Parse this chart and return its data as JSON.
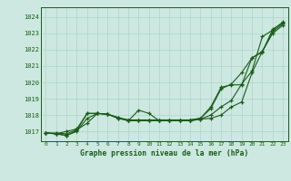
{
  "xlabel": "Graphe pression niveau de la mer (hPa)",
  "ylim": [
    1016.4,
    1024.6
  ],
  "xlim": [
    -0.5,
    23.5
  ],
  "yticks": [
    1017,
    1018,
    1019,
    1020,
    1021,
    1022,
    1023,
    1024
  ],
  "xticks": [
    0,
    1,
    2,
    3,
    4,
    5,
    6,
    7,
    8,
    9,
    10,
    11,
    12,
    13,
    14,
    15,
    16,
    17,
    18,
    19,
    20,
    21,
    22,
    23
  ],
  "bg_color": "#cce8e0",
  "grid_color": "#b0d4c8",
  "line_color": "#1a5c1a",
  "line1": [
    1016.9,
    1016.9,
    1016.85,
    1017.1,
    1017.5,
    1018.1,
    1018.05,
    1017.85,
    1017.65,
    1017.65,
    1017.65,
    1017.65,
    1017.65,
    1017.65,
    1017.65,
    1017.75,
    1017.8,
    1018.0,
    1018.5,
    1018.8,
    1020.6,
    1021.9,
    1023.0,
    1023.5
  ],
  "line2": [
    1016.9,
    1016.85,
    1016.75,
    1017.05,
    1018.1,
    1018.1,
    1018.05,
    1017.85,
    1017.7,
    1017.7,
    1017.7,
    1017.7,
    1017.7,
    1017.7,
    1017.7,
    1017.8,
    1018.4,
    1019.6,
    1019.9,
    1020.6,
    1021.5,
    1021.9,
    1023.1,
    1023.6
  ],
  "line3": [
    1016.9,
    1016.85,
    1017.0,
    1017.15,
    1018.1,
    1018.1,
    1018.05,
    1017.8,
    1017.7,
    1017.7,
    1017.7,
    1017.7,
    1017.7,
    1017.7,
    1017.7,
    1017.8,
    1018.5,
    1019.7,
    1019.85,
    1019.85,
    1021.5,
    1021.85,
    1023.25,
    1023.65
  ],
  "line4": [
    1016.9,
    1016.85,
    1016.75,
    1017.0,
    1017.8,
    1018.1,
    1018.05,
    1017.8,
    1017.65,
    1018.3,
    1018.1,
    1017.65,
    1017.65,
    1017.65,
    1017.65,
    1017.75,
    1018.0,
    1018.5,
    1018.9,
    1019.9,
    1020.7,
    1022.8,
    1023.2,
    1023.7
  ]
}
